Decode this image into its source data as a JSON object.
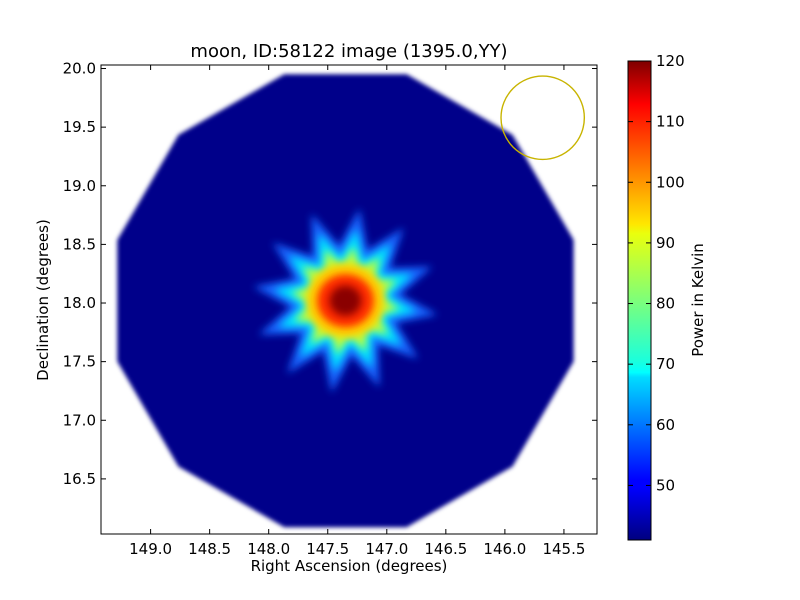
{
  "chart_data": {
    "type": "heatmap",
    "title": "moon, ID:58122 image (1395.0,YY)",
    "xlabel": "Right Ascension (degrees)",
    "ylabel": "Declination (degrees)",
    "x_ticks": [
      149.0,
      148.5,
      148.0,
      147.5,
      147.0,
      146.5,
      146.0,
      145.5
    ],
    "x_tick_labels": [
      "149.0",
      "148.5",
      "148.0",
      "147.5",
      "147.0",
      "146.5",
      "146.0",
      "145.5"
    ],
    "xlim": [
      149.42,
      145.22
    ],
    "x_inverted": true,
    "y_ticks": [
      16.5,
      17.0,
      17.5,
      18.0,
      18.5,
      19.0,
      19.5,
      20.0
    ],
    "y_tick_labels": [
      "16.5",
      "17.0",
      "17.5",
      "18.0",
      "18.5",
      "19.0",
      "19.5",
      "20.0"
    ],
    "ylim": [
      16.03,
      20.03
    ],
    "grid": false,
    "colormap": "jet",
    "colorbar": {
      "label": "Power in Kelvin",
      "min": 41,
      "max": 120,
      "ticks": [
        50,
        60,
        70,
        80,
        90,
        100,
        110,
        120
      ],
      "tick_labels": [
        "50",
        "60",
        "70",
        "80",
        "90",
        "100",
        "110",
        "120"
      ]
    },
    "map": {
      "shape": "dodecagon",
      "center_ra": 147.35,
      "center_dec": 18.02,
      "radius_deg": 2.0,
      "background_value": 41,
      "source_center_ra": 147.35,
      "source_center_dec": 18.02,
      "source_peak_value": 120,
      "source_points": 12
    },
    "beam_circle": {
      "center_ra": 145.68,
      "center_dec": 19.58,
      "radius_deg": 0.36,
      "color": "#c8b400"
    }
  }
}
